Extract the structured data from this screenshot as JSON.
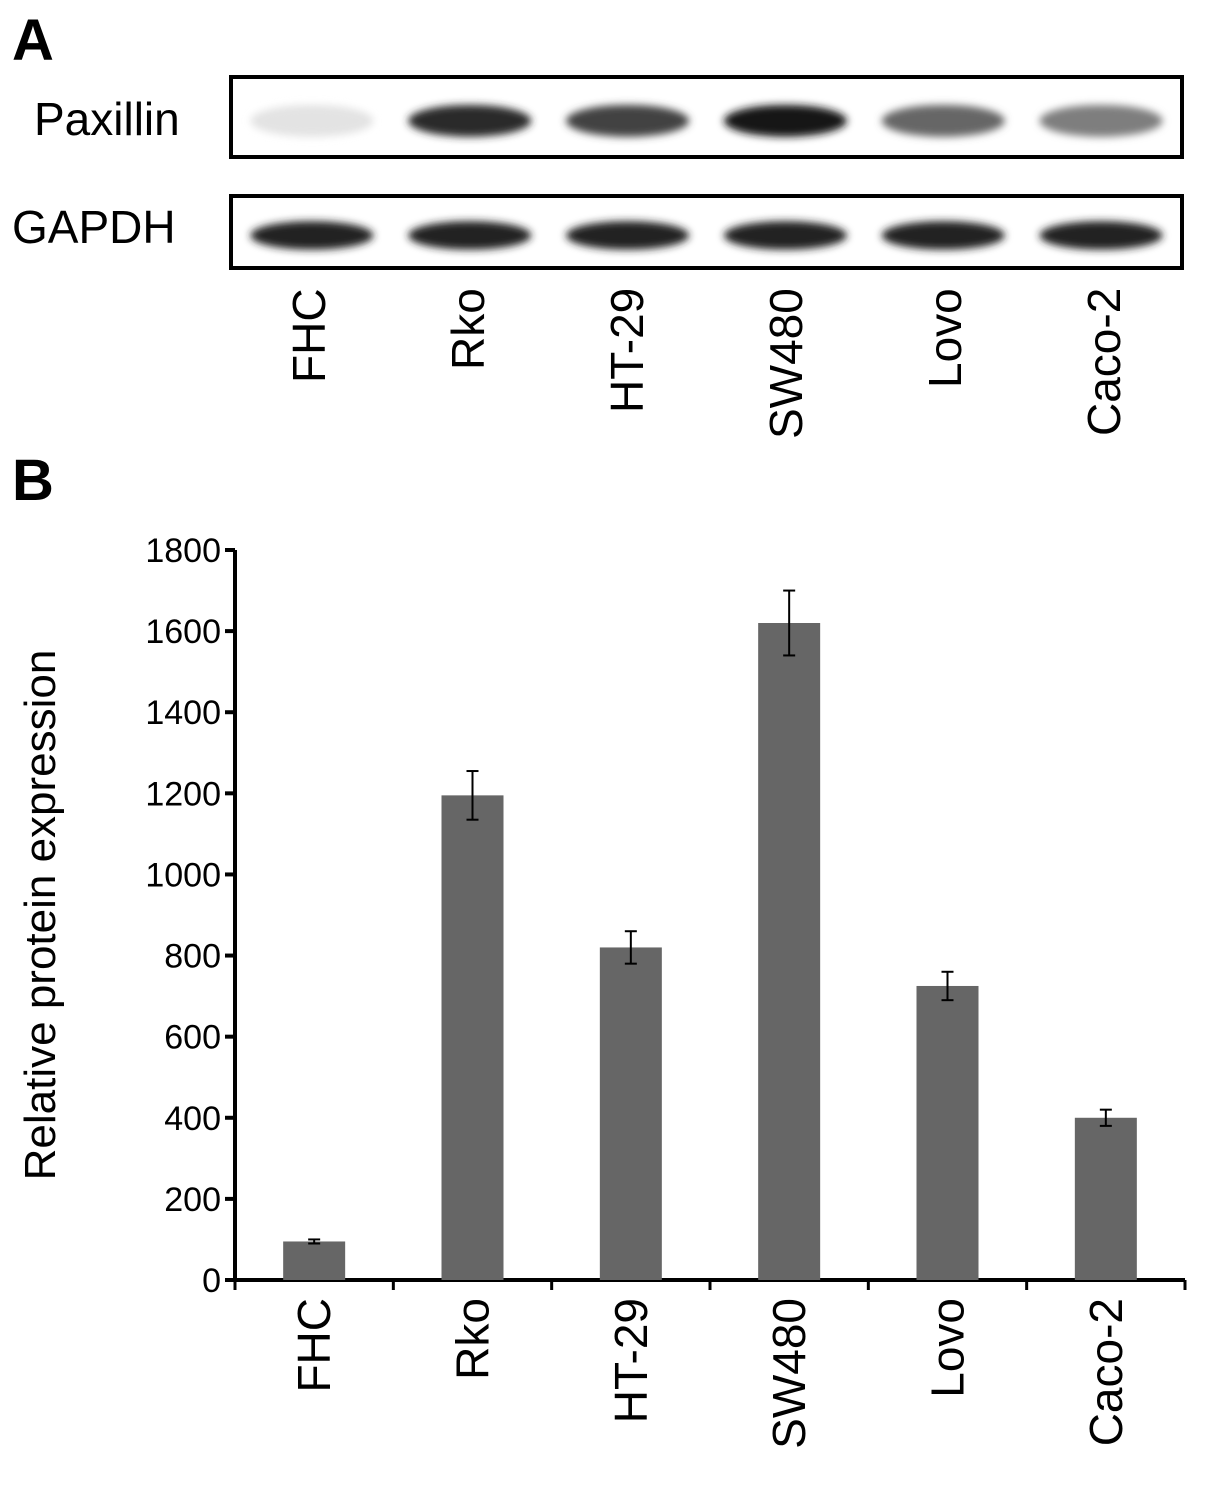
{
  "panels": {
    "a_label": "A",
    "b_label": "B"
  },
  "blot": {
    "rows": [
      {
        "label": "Paxillin",
        "intensities": [
          0.12,
          0.9,
          0.8,
          1.0,
          0.65,
          0.55
        ]
      },
      {
        "label": "GAPDH",
        "intensities": [
          0.95,
          0.95,
          0.95,
          0.95,
          0.95,
          0.95
        ]
      }
    ],
    "lanes": [
      "FHC",
      "Rko",
      "HT-29",
      "SW480",
      "Lovo",
      "Caco-2"
    ]
  },
  "chart_data": {
    "type": "bar",
    "categories": [
      "FHC",
      "Rko",
      "HT-29",
      "SW480",
      "Lovo",
      "Caco-2"
    ],
    "values": [
      95,
      1195,
      820,
      1620,
      725,
      400
    ],
    "errors": [
      5,
      60,
      40,
      80,
      35,
      20
    ],
    "ylabel": "Relative protein expression",
    "xlabel": "",
    "ylim": [
      0,
      1800
    ],
    "yticks": [
      0,
      200,
      400,
      600,
      800,
      1000,
      1200,
      1400,
      1600,
      1800
    ],
    "bar_color": "#666666",
    "grid": false
  }
}
